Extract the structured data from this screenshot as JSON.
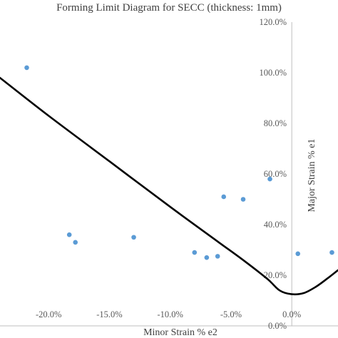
{
  "chart_data": {
    "type": "scatter",
    "title": "Forming Limit Diagram for SECC (thickness: 1mm)",
    "xlabel": "Minor Strain % e2",
    "ylabel": "Major Strain % e1",
    "xlim": [
      -0.24,
      0.038
    ],
    "ylim": [
      0.0,
      1.2
    ],
    "x_ticks": [
      -0.2,
      -0.15,
      -0.1,
      -0.05,
      0.0
    ],
    "x_tick_labels": [
      "-20.0%",
      "-15.0%",
      "-10.0%",
      "-5.0%",
      "0.0%"
    ],
    "y_ticks": [
      0.0,
      0.2,
      0.4,
      0.6,
      0.8,
      1.0,
      1.2
    ],
    "y_tick_labels": [
      "0.0%",
      "20.0%",
      "40.0%",
      "60.0%",
      "80.0%",
      "100.0%",
      "120.0%"
    ],
    "grid": false,
    "legend": "none",
    "colors": {
      "points": "#5b9bd5",
      "curve": "#000000",
      "axis": "#bfbfbf",
      "text": "#595959"
    },
    "series": [
      {
        "kind": "points",
        "x": [
          -0.218,
          -0.183,
          -0.178,
          -0.13,
          -0.08,
          -0.07,
          -0.061,
          -0.056,
          -0.04,
          -0.018,
          0.005,
          0.033
        ],
        "y": [
          1.02,
          0.36,
          0.33,
          0.35,
          0.29,
          0.27,
          0.275,
          0.51,
          0.5,
          0.58,
          0.285,
          0.29
        ]
      },
      {
        "kind": "line",
        "x": [
          -0.24,
          -0.2,
          -0.15,
          -0.1,
          -0.06,
          -0.04,
          -0.02,
          -0.01,
          0.0,
          0.01,
          0.02,
          0.03,
          0.038
        ],
        "y": [
          0.98,
          0.83,
          0.65,
          0.47,
          0.33,
          0.26,
          0.185,
          0.14,
          0.125,
          0.13,
          0.155,
          0.19,
          0.22
        ]
      }
    ]
  }
}
